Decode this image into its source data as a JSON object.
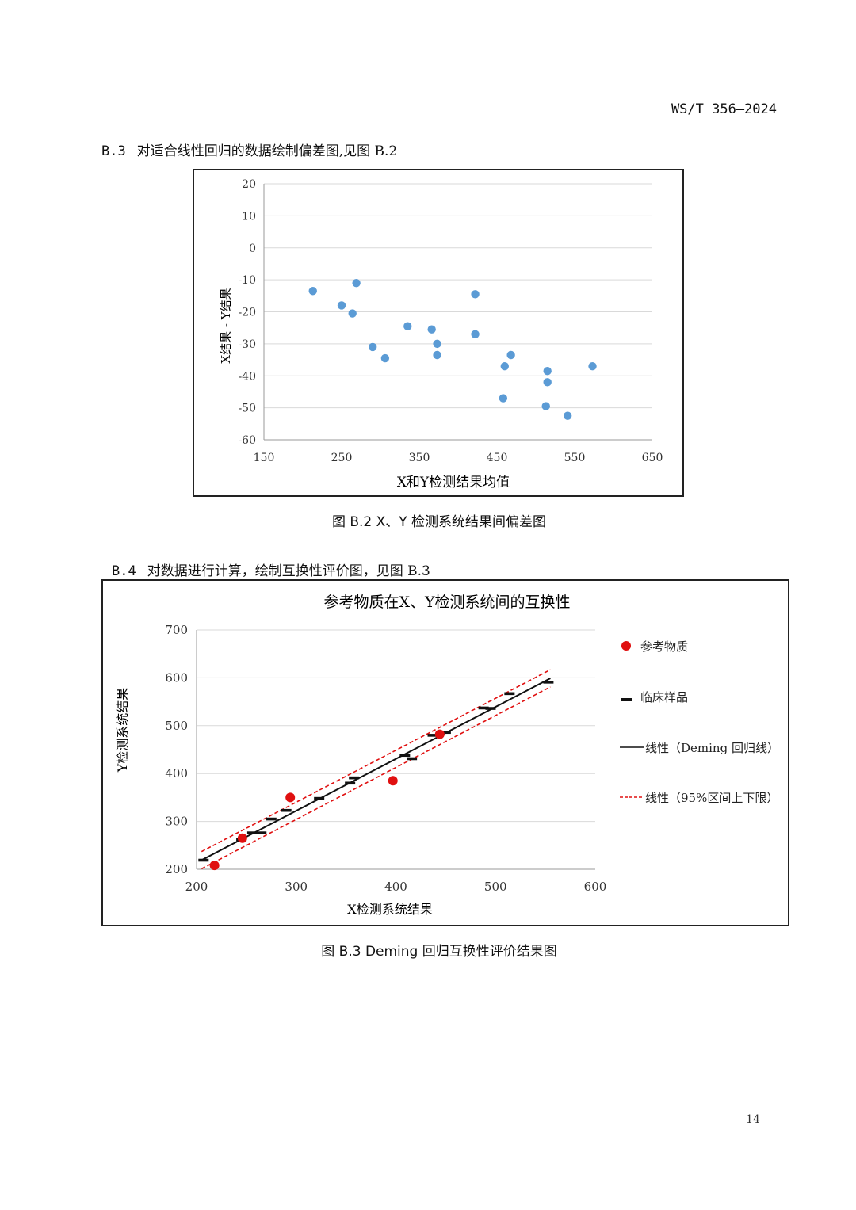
{
  "header": {
    "doc_code": "WS/T 356—2024"
  },
  "sections": {
    "b3": {
      "num": "B.3",
      "text": "对适合线性回归的数据绘制偏差图,见图 B.2"
    },
    "b4": {
      "num": "B.4",
      "text": "对数据进行计算，绘制互换性评价图，见图 B.3"
    }
  },
  "figure_b2": {
    "caption": "图 B.2  X、Y 检测系统结果间偏差图",
    "chart_data": {
      "type": "scatter",
      "title": "",
      "xlabel": "X和Y检测结果均值",
      "ylabel": "X结果 - Y结果",
      "xlim": [
        150,
        650
      ],
      "ylim": [
        -60,
        20
      ],
      "x_ticks": [
        "150",
        "250",
        "350",
        "450",
        "550",
        "650"
      ],
      "y_ticks": [
        "20",
        "10",
        "0",
        "-10",
        "-20",
        "-30",
        "-40",
        "-50",
        "-60"
      ],
      "grid": "horizontal",
      "series": [
        {
          "color": "#5b9bd5",
          "points": [
            [
              213,
              -13.5
            ],
            [
              250,
              -18
            ],
            [
              264,
              -20.5
            ],
            [
              269,
              -11
            ],
            [
              290,
              -31
            ],
            [
              306,
              -34.5
            ],
            [
              335,
              -24.5
            ],
            [
              366,
              -25.5
            ],
            [
              373,
              -30
            ],
            [
              373,
              -33.5
            ],
            [
              422,
              -14.5
            ],
            [
              422,
              -27
            ],
            [
              458,
              -47
            ],
            [
              460,
              -37
            ],
            [
              468,
              -33.5
            ],
            [
              513,
              -49.5
            ],
            [
              515,
              -38.5
            ],
            [
              515,
              -42
            ],
            [
              541,
              -52.5
            ],
            [
              573,
              -37
            ]
          ]
        }
      ]
    }
  },
  "figure_b3": {
    "caption": "图 B.3  Deming 回归互换性评价结果图",
    "chart_data": {
      "type": "scatter",
      "title": "参考物质在X、Y检测系统间的互换性",
      "xlabel": "X检测系统结果",
      "ylabel": "Y检测系统结果",
      "xlim": [
        200,
        600
      ],
      "ylim": [
        200,
        700
      ],
      "x_ticks": [
        "200",
        "300",
        "400",
        "500",
        "600"
      ],
      "y_ticks": [
        "700",
        "600",
        "500",
        "400",
        "300",
        "200"
      ],
      "grid": "horizontal",
      "legend_position": "right",
      "regression_line": {
        "x": [
          205,
          555
        ],
        "y": [
          219,
          599
        ]
      },
      "upper_limit": {
        "x": [
          205,
          555
        ],
        "y": [
          237,
          617
        ]
      },
      "lower_limit": {
        "x": [
          205,
          555
        ],
        "y": [
          201,
          581
        ]
      },
      "series": [
        {
          "name": "参考物质",
          "marker": "circle",
          "color": "#e01010",
          "points": [
            [
              218,
              208
            ],
            [
              246,
              265
            ],
            [
              294,
              350
            ],
            [
              397,
              385
            ],
            [
              444,
              482
            ]
          ]
        },
        {
          "name": "临床样品",
          "marker": "dash",
          "color": "#111111",
          "points": [
            [
              207,
              219
            ],
            [
              245,
              262
            ],
            [
              256,
              276
            ],
            [
              265,
              276
            ],
            [
              275,
              305
            ],
            [
              290,
              323
            ],
            [
              323,
              348
            ],
            [
              354,
              380
            ],
            [
              358,
              391
            ],
            [
              409,
              438
            ],
            [
              416,
              431
            ],
            [
              437,
              480
            ],
            [
              450,
              486
            ],
            [
              488,
              537
            ],
            [
              495,
              536
            ],
            [
              514,
              567
            ],
            [
              553,
              591
            ]
          ]
        },
        {
          "name": "线性（Deming 回归线）",
          "marker": "solid-line",
          "color": "#111111"
        },
        {
          "name": "线性（95%区间上下限）",
          "marker": "dashed-line",
          "color": "#e01010"
        }
      ]
    }
  },
  "page_number": "14"
}
